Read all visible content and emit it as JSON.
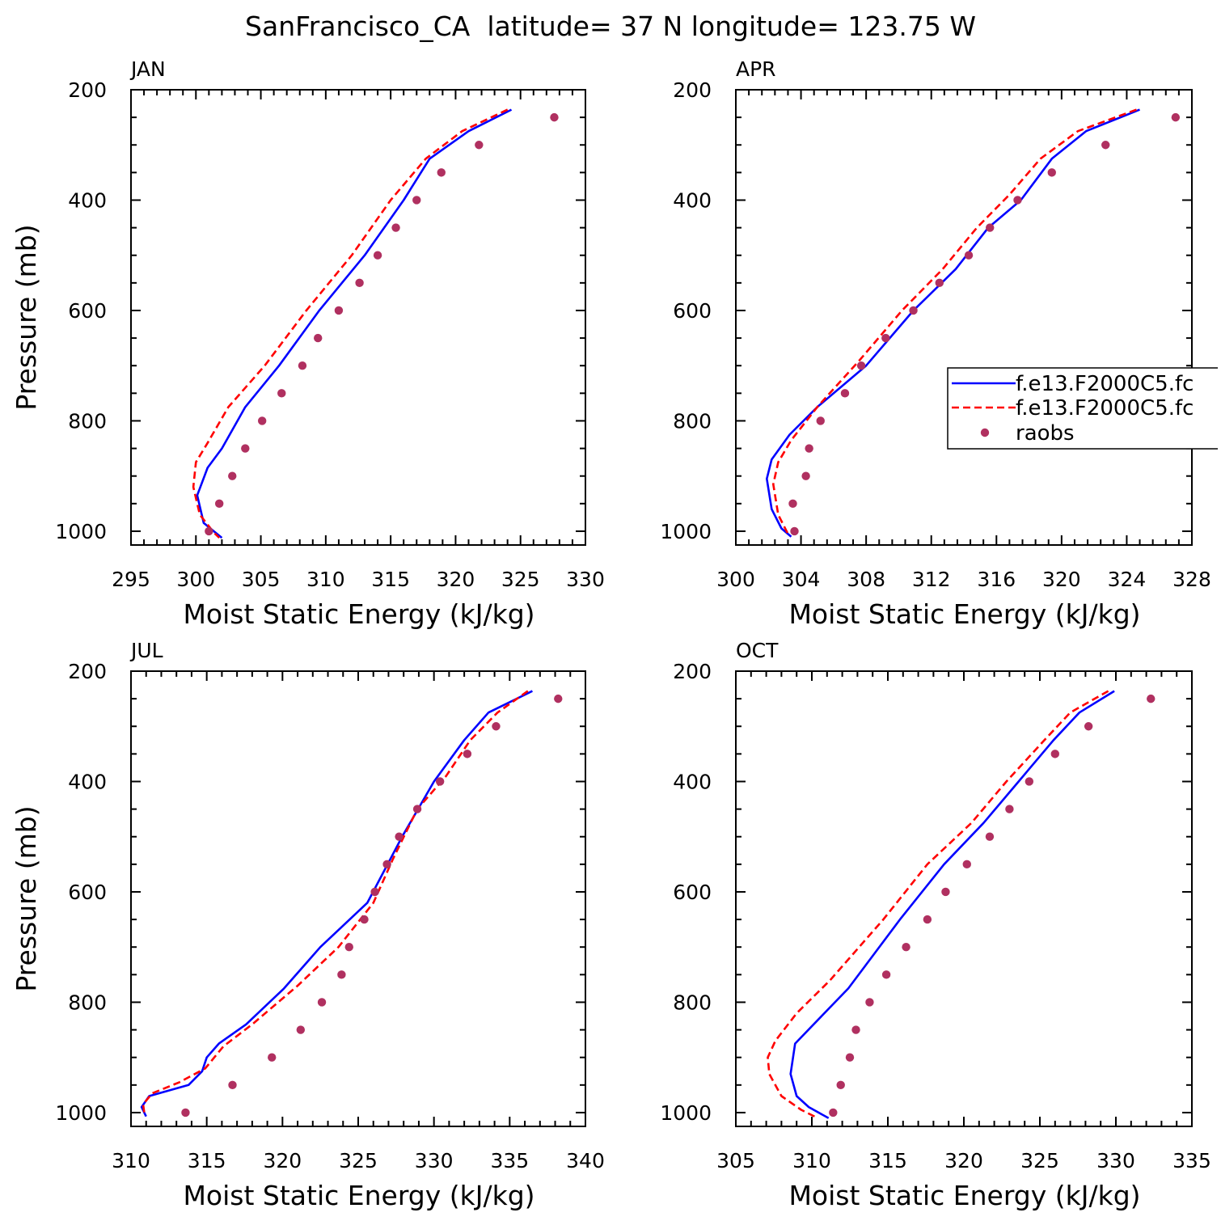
{
  "title": "SanFrancisco_CA  latitude= 37 N longitude= 123.75 W",
  "colors": {
    "model_a": "#0000ff",
    "model_b": "#ff0000",
    "raobs": "#b03060",
    "axis": "#000000"
  },
  "legend": [
    "f.e13.F2000C5.fc",
    "f.e13.F2000C5.fc",
    "raobs"
  ],
  "chart_data": [
    {
      "type": "line",
      "panel": "JAN",
      "title": "JAN",
      "xlabel": "Moist Static Energy (kJ/kg)",
      "ylabel": "Pressure (mb)",
      "xlim": [
        295,
        330
      ],
      "ylim": [
        1025,
        200
      ],
      "xticks": [
        295,
        300,
        305,
        310,
        315,
        320,
        325,
        330
      ],
      "yticks": [
        200,
        400,
        600,
        800,
        1000
      ],
      "series": [
        {
          "name": "f.e13.F2000C5.fc",
          "style": "solid",
          "x": [
            324.3,
            321.0,
            318.0,
            316.0,
            313.0,
            309.5,
            306.4,
            303.8,
            302.0,
            300.9,
            300.1,
            300.6,
            302.0
          ],
          "y": [
            236,
            275,
            325,
            400,
            500,
            600,
            700,
            775,
            850,
            885,
            935,
            985,
            1012
          ]
        },
        {
          "name": "f.e13.F2000C5.fc",
          "style": "dashed",
          "x": [
            324.0,
            320.5,
            317.7,
            315.0,
            312.0,
            308.5,
            305.3,
            302.5,
            300.9,
            300.0,
            299.8,
            300.3,
            301.4,
            301.8
          ],
          "y": [
            236,
            275,
            325,
            400,
            500,
            600,
            700,
            775,
            840,
            875,
            920,
            970,
            1003,
            1012
          ]
        },
        {
          "name": "raobs",
          "style": "points",
          "x": [
            327.6,
            321.8,
            318.9,
            317.0,
            315.4,
            314.0,
            312.6,
            311.0,
            309.4,
            308.2,
            306.6,
            305.1,
            303.8,
            302.8,
            301.8,
            301.0
          ],
          "y": [
            250,
            300,
            350,
            400,
            450,
            500,
            550,
            600,
            650,
            700,
            750,
            800,
            850,
            900,
            950,
            1000
          ]
        }
      ]
    },
    {
      "type": "line",
      "panel": "APR",
      "title": "APR",
      "xlabel": "Moist Static Energy (kJ/kg)",
      "ylabel": "",
      "xlim": [
        300,
        328
      ],
      "ylim": [
        1025,
        200
      ],
      "xticks": [
        300,
        304,
        308,
        312,
        316,
        320,
        324,
        328
      ],
      "yticks": [
        200,
        400,
        600,
        800,
        1000
      ],
      "series": [
        {
          "name": "f.e13.F2000C5.fc",
          "style": "solid",
          "x": [
            324.8,
            321.5,
            319.4,
            317.5,
            315.5,
            313.5,
            310.9,
            308.0,
            305.0,
            303.3,
            302.2,
            301.9,
            302.2,
            302.8,
            303.4
          ],
          "y": [
            236,
            275,
            325,
            400,
            450,
            525,
            600,
            700,
            775,
            825,
            870,
            905,
            960,
            995,
            1010
          ]
        },
        {
          "name": "f.e13.F2000C5.fc",
          "style": "dashed",
          "x": [
            324.6,
            321.0,
            318.7,
            316.8,
            314.8,
            312.7,
            310.2,
            307.6,
            305.0,
            303.4,
            302.6,
            302.3,
            302.6,
            303.2
          ],
          "y": [
            236,
            275,
            325,
            390,
            450,
            525,
            600,
            690,
            775,
            835,
            875,
            915,
            970,
            1005
          ]
        },
        {
          "name": "raobs",
          "style": "points",
          "x": [
            327.0,
            322.7,
            319.4,
            317.3,
            315.6,
            314.3,
            312.5,
            310.9,
            309.2,
            307.7,
            306.7,
            305.2,
            304.5,
            304.3,
            303.5,
            303.6
          ],
          "y": [
            250,
            300,
            350,
            400,
            450,
            500,
            550,
            600,
            650,
            700,
            750,
            800,
            850,
            900,
            950,
            1000
          ]
        }
      ]
    },
    {
      "type": "line",
      "panel": "JUL",
      "title": "JUL",
      "xlabel": "Moist Static Energy (kJ/kg)",
      "ylabel": "Pressure (mb)",
      "xlim": [
        310,
        340
      ],
      "ylim": [
        1025,
        200
      ],
      "xticks": [
        310,
        315,
        320,
        325,
        330,
        335,
        340
      ],
      "yticks": [
        200,
        400,
        600,
        800,
        1000
      ],
      "series": [
        {
          "name": "f.e13.F2000C5.fc",
          "style": "solid",
          "x": [
            336.5,
            333.6,
            332.0,
            330.0,
            327.9,
            325.6,
            322.5,
            320.1,
            317.6,
            315.8,
            315.0,
            314.7,
            313.8,
            311.2,
            310.7,
            311.0
          ],
          "y": [
            236,
            275,
            325,
            400,
            500,
            620,
            700,
            775,
            840,
            875,
            900,
            925,
            950,
            970,
            990,
            1007
          ]
        },
        {
          "name": "f.e13.F2000C5.fc",
          "style": "dashed",
          "x": [
            336.2,
            334.2,
            332.4,
            330.8,
            328.9,
            327.3,
            326.0,
            323.7,
            321.0,
            318.0,
            316.1,
            314.9,
            313.2,
            311.4,
            310.8,
            310.9
          ],
          "y": [
            236,
            275,
            325,
            390,
            450,
            540,
            620,
            700,
            770,
            840,
            880,
            920,
            945,
            965,
            985,
            1005
          ]
        },
        {
          "name": "raobs",
          "style": "points",
          "x": [
            338.2,
            334.1,
            332.2,
            330.4,
            328.9,
            327.7,
            326.9,
            326.1,
            325.4,
            324.4,
            323.9,
            322.6,
            321.2,
            319.3,
            316.7,
            313.6
          ],
          "y": [
            250,
            300,
            350,
            400,
            450,
            500,
            550,
            600,
            650,
            700,
            750,
            800,
            850,
            900,
            950,
            1000
          ]
        }
      ]
    },
    {
      "type": "line",
      "panel": "OCT",
      "title": "OCT",
      "xlabel": "Moist Static Energy (kJ/kg)",
      "ylabel": "",
      "xlim": [
        305,
        335
      ],
      "ylim": [
        1025,
        200
      ],
      "xticks": [
        305,
        310,
        315,
        320,
        325,
        330,
        335
      ],
      "yticks": [
        200,
        400,
        600,
        800,
        1000
      ],
      "series": [
        {
          "name": "f.e13.F2000C5.fc",
          "style": "solid",
          "x": [
            329.9,
            327.6,
            325.9,
            323.6,
            321.3,
            318.7,
            315.8,
            312.4,
            310.3,
            308.9,
            308.6,
            309.0,
            309.8,
            311.1
          ],
          "y": [
            236,
            275,
            325,
            400,
            475,
            550,
            650,
            775,
            835,
            875,
            930,
            970,
            990,
            1010
          ]
        },
        {
          "name": "f.e13.F2000C5.fc",
          "style": "dashed",
          "x": [
            329.5,
            327.0,
            325.3,
            322.8,
            320.5,
            317.6,
            314.7,
            311.2,
            309.0,
            307.6,
            307.1,
            307.2,
            308.0,
            309.3,
            310.4
          ],
          "y": [
            236,
            275,
            325,
            400,
            475,
            550,
            650,
            760,
            820,
            870,
            900,
            930,
            970,
            995,
            1010
          ]
        },
        {
          "name": "raobs",
          "style": "points",
          "x": [
            332.3,
            328.2,
            326.0,
            324.3,
            323.0,
            321.7,
            320.2,
            318.8,
            317.6,
            316.2,
            314.9,
            313.8,
            312.9,
            312.5,
            311.9,
            311.4
          ],
          "y": [
            250,
            300,
            350,
            400,
            450,
            500,
            550,
            600,
            650,
            700,
            750,
            800,
            850,
            900,
            950,
            1000
          ]
        }
      ]
    }
  ]
}
